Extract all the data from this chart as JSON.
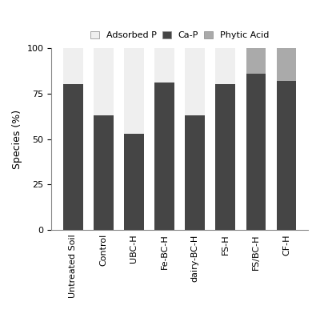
{
  "categories": [
    "Untreated Soil",
    "Control",
    "UBC-H",
    "Fe-BC-H",
    "dairy-BC-H",
    "FS-H",
    "FS/BC-H",
    "CF-H"
  ],
  "cap_values": [
    80,
    63,
    53,
    81,
    63,
    80,
    86,
    82
  ],
  "adsorbed_values": [
    20,
    37,
    47,
    19,
    37,
    20,
    0,
    0
  ],
  "phytic_values": [
    0,
    0,
    0,
    0,
    0,
    0,
    14,
    18
  ],
  "cap_color": "#454545",
  "adsorbed_color": "#efefef",
  "phytic_color": "#aaaaaa",
  "ylabel": "Species (%)",
  "yticks": [
    0,
    25,
    50,
    75,
    100
  ],
  "ylim": [
    0,
    100
  ],
  "legend_labels": [
    "Adsorbed P",
    "Ca-P",
    "Phytic Acid"
  ],
  "axis_fontsize": 9,
  "tick_fontsize": 8,
  "legend_fontsize": 8,
  "bar_width": 0.65,
  "background_color": "#ffffff"
}
